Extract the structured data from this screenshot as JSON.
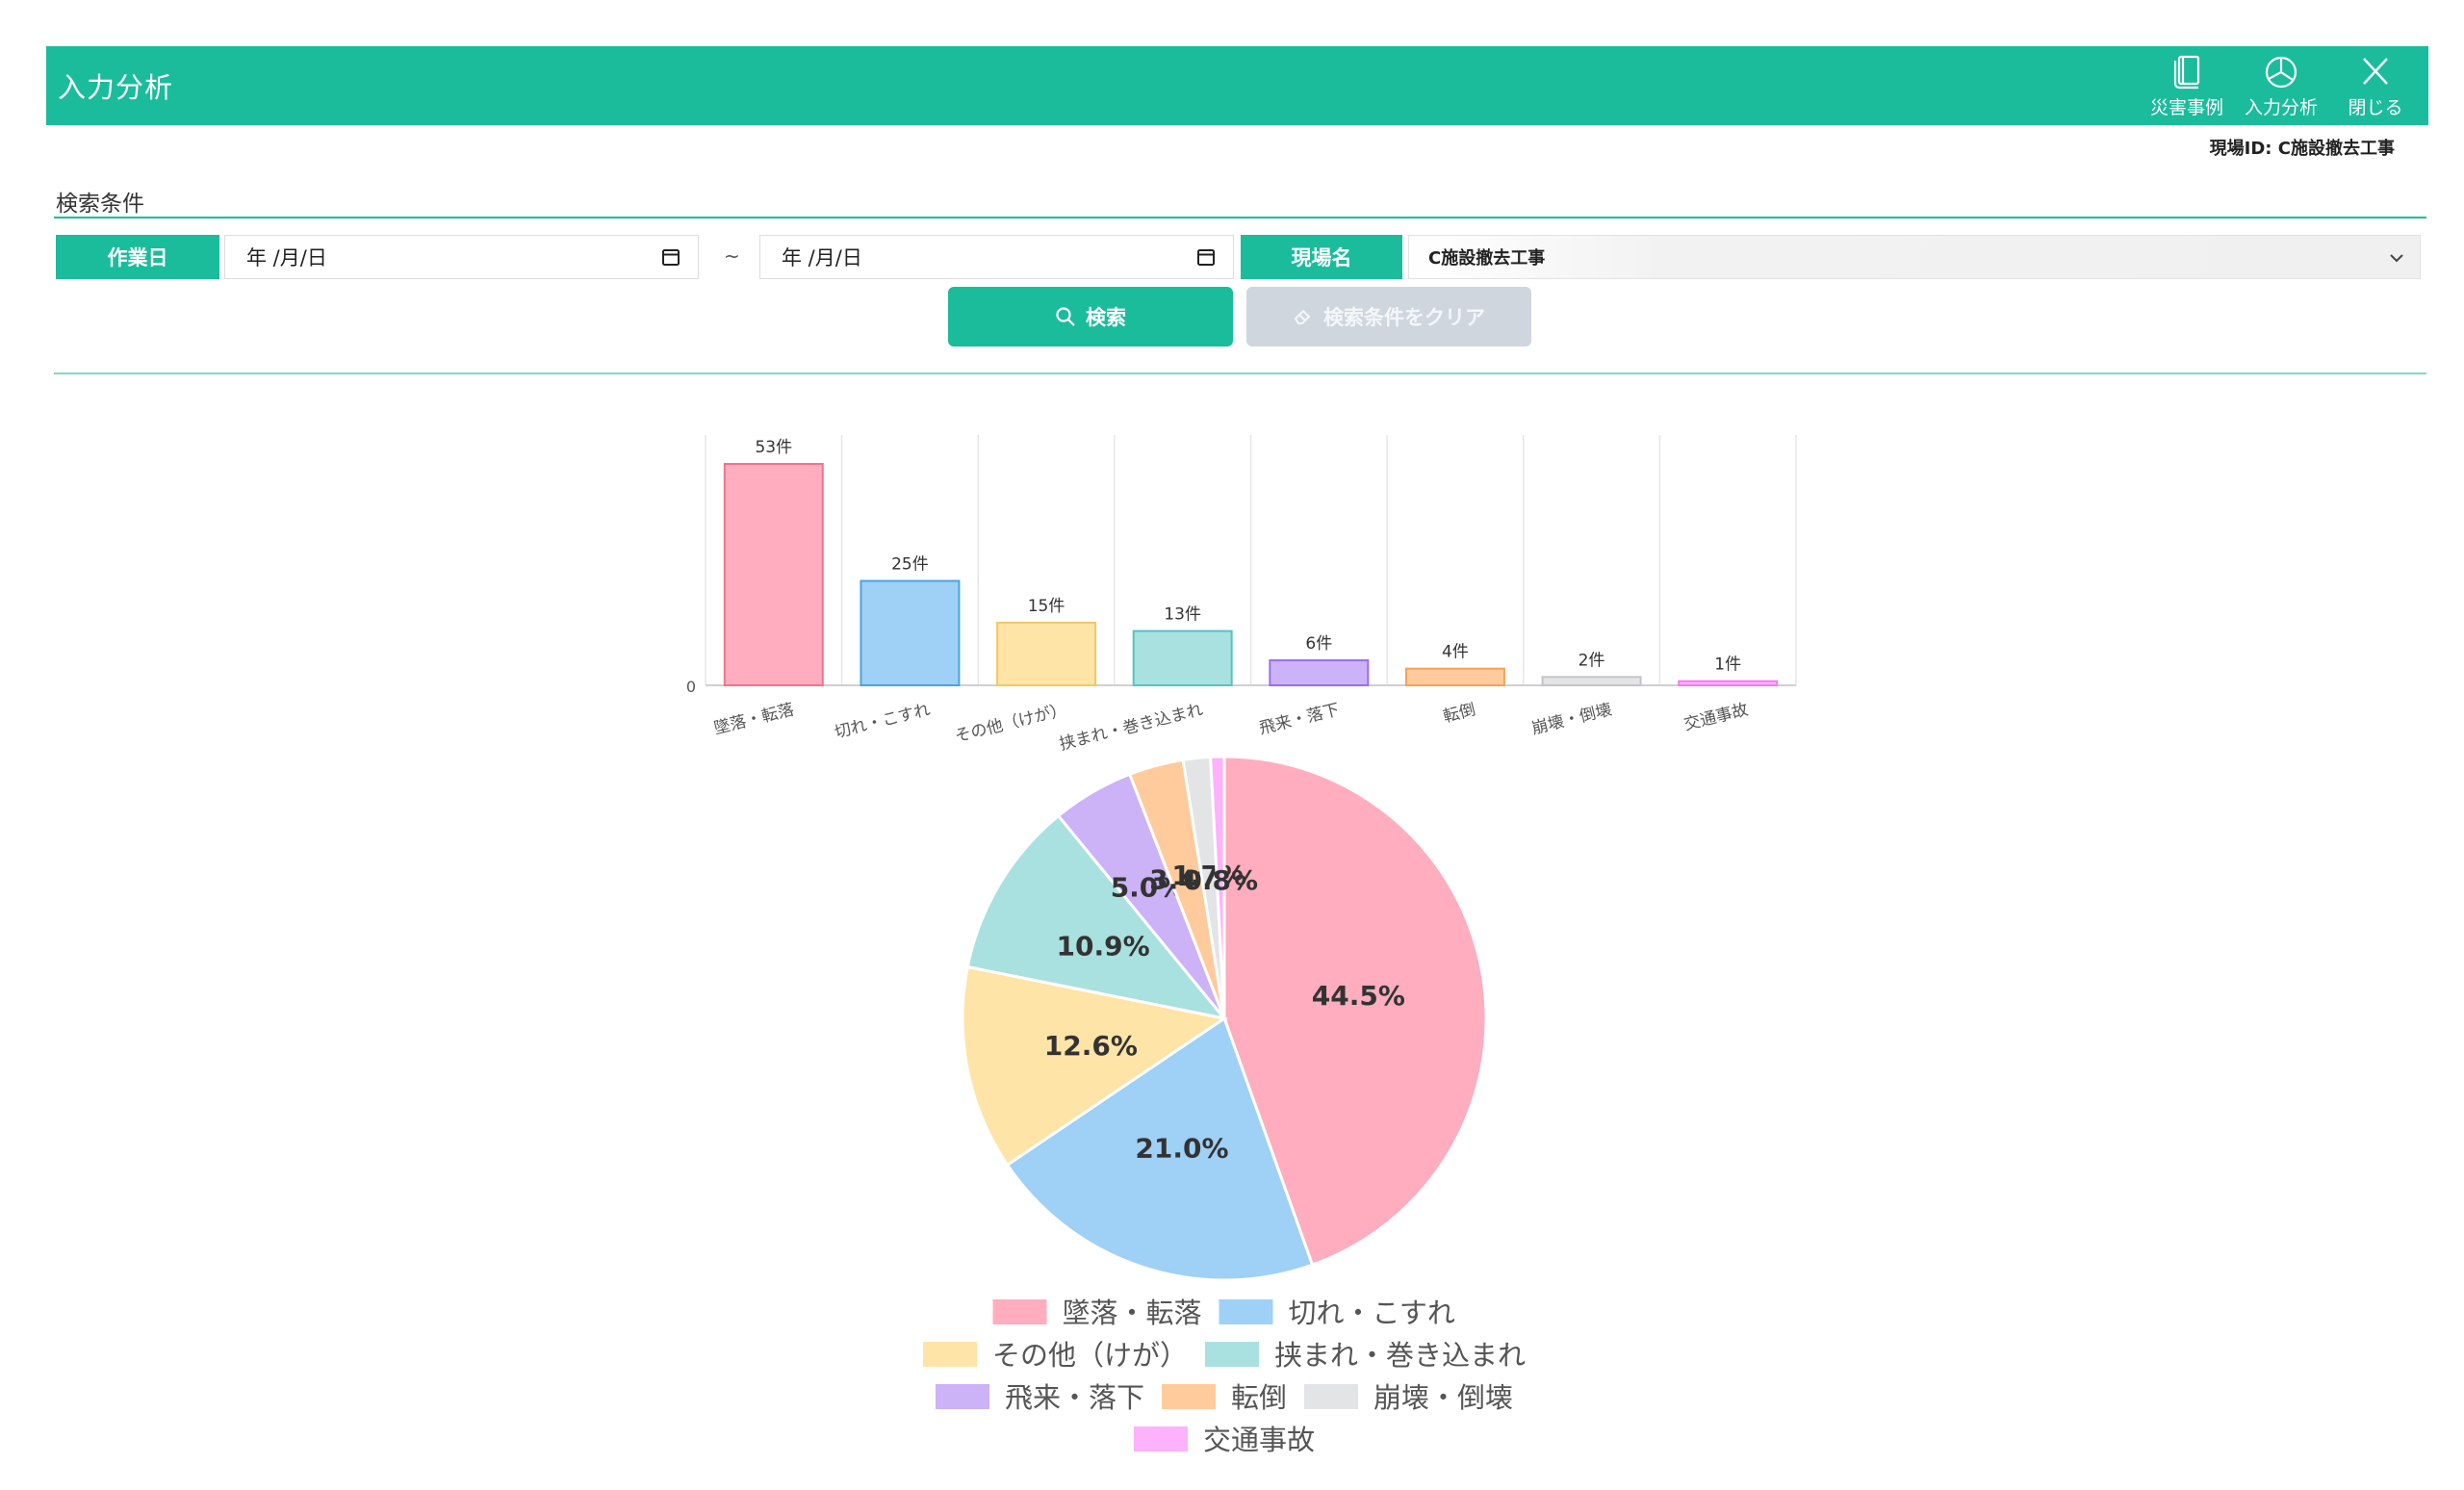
{
  "header": {
    "title": "入力分析",
    "actions": [
      {
        "label": "災害事例",
        "icon": "book-icon"
      },
      {
        "label": "入力分析",
        "icon": "pie-chart-icon"
      },
      {
        "label": "閉じる",
        "icon": "close-icon"
      }
    ]
  },
  "site_id": "現場ID:  C施設撤去工事",
  "search": {
    "section_label": "検索条件",
    "work_date_label": "作業日",
    "date_from": "年 /月/日",
    "date_separator": "~",
    "date_to": "年 /月/日",
    "site_name_label": "現場名",
    "site_name_value": "C施設撤去工事",
    "search_button": "検索",
    "clear_button": "検索条件をクリア"
  },
  "chart_data": [
    {
      "type": "bar",
      "categories": [
        "墜落・転落",
        "切れ・こすれ",
        "その他（けが）",
        "挟まれ・巻き込まれ",
        "飛来・落下",
        "転倒",
        "崩壊・倒壊",
        "交通事故"
      ],
      "values": [
        53,
        25,
        15,
        13,
        6,
        4,
        2,
        1
      ],
      "data_labels": [
        "53件",
        "25件",
        "15件",
        "13件",
        "6件",
        "4件",
        "2件",
        "1件"
      ],
      "y_tick_labels": [
        "0"
      ],
      "ylim": [
        0,
        53
      ],
      "grid": true,
      "colors": [
        "#ffadbf",
        "#9fd0f5",
        "#ffe4a8",
        "#a8e1df",
        "#ccb2f7",
        "#ffcb9c",
        "#e3e4e6",
        "#fdb2fb"
      ],
      "border_colors": [
        "#f3728e",
        "#4ca3e0",
        "#f5c85e",
        "#56c3bf",
        "#9b6ef2",
        "#f8a257",
        "#c2c4c8",
        "#f77bf2"
      ]
    },
    {
      "type": "pie",
      "categories": [
        "墜落・転落",
        "切れ・こすれ",
        "その他（けが）",
        "挟まれ・巻き込まれ",
        "飛来・落下",
        "転倒",
        "崩壊・倒壊",
        "交通事故"
      ],
      "values": [
        53,
        25,
        15,
        13,
        6,
        4,
        2,
        1
      ],
      "percent_labels": [
        "44.5%",
        "21.0%",
        "12.6%",
        "10.9%",
        "5.0%",
        "3.4%",
        "1.7%",
        "0.8%"
      ],
      "colors": [
        "#ffadbf",
        "#9fd0f5",
        "#ffe4a8",
        "#a8e1df",
        "#ccb2f7",
        "#ffcb9c",
        "#e3e4e6",
        "#fdb2fb"
      ],
      "legend_position": "bottom"
    }
  ]
}
